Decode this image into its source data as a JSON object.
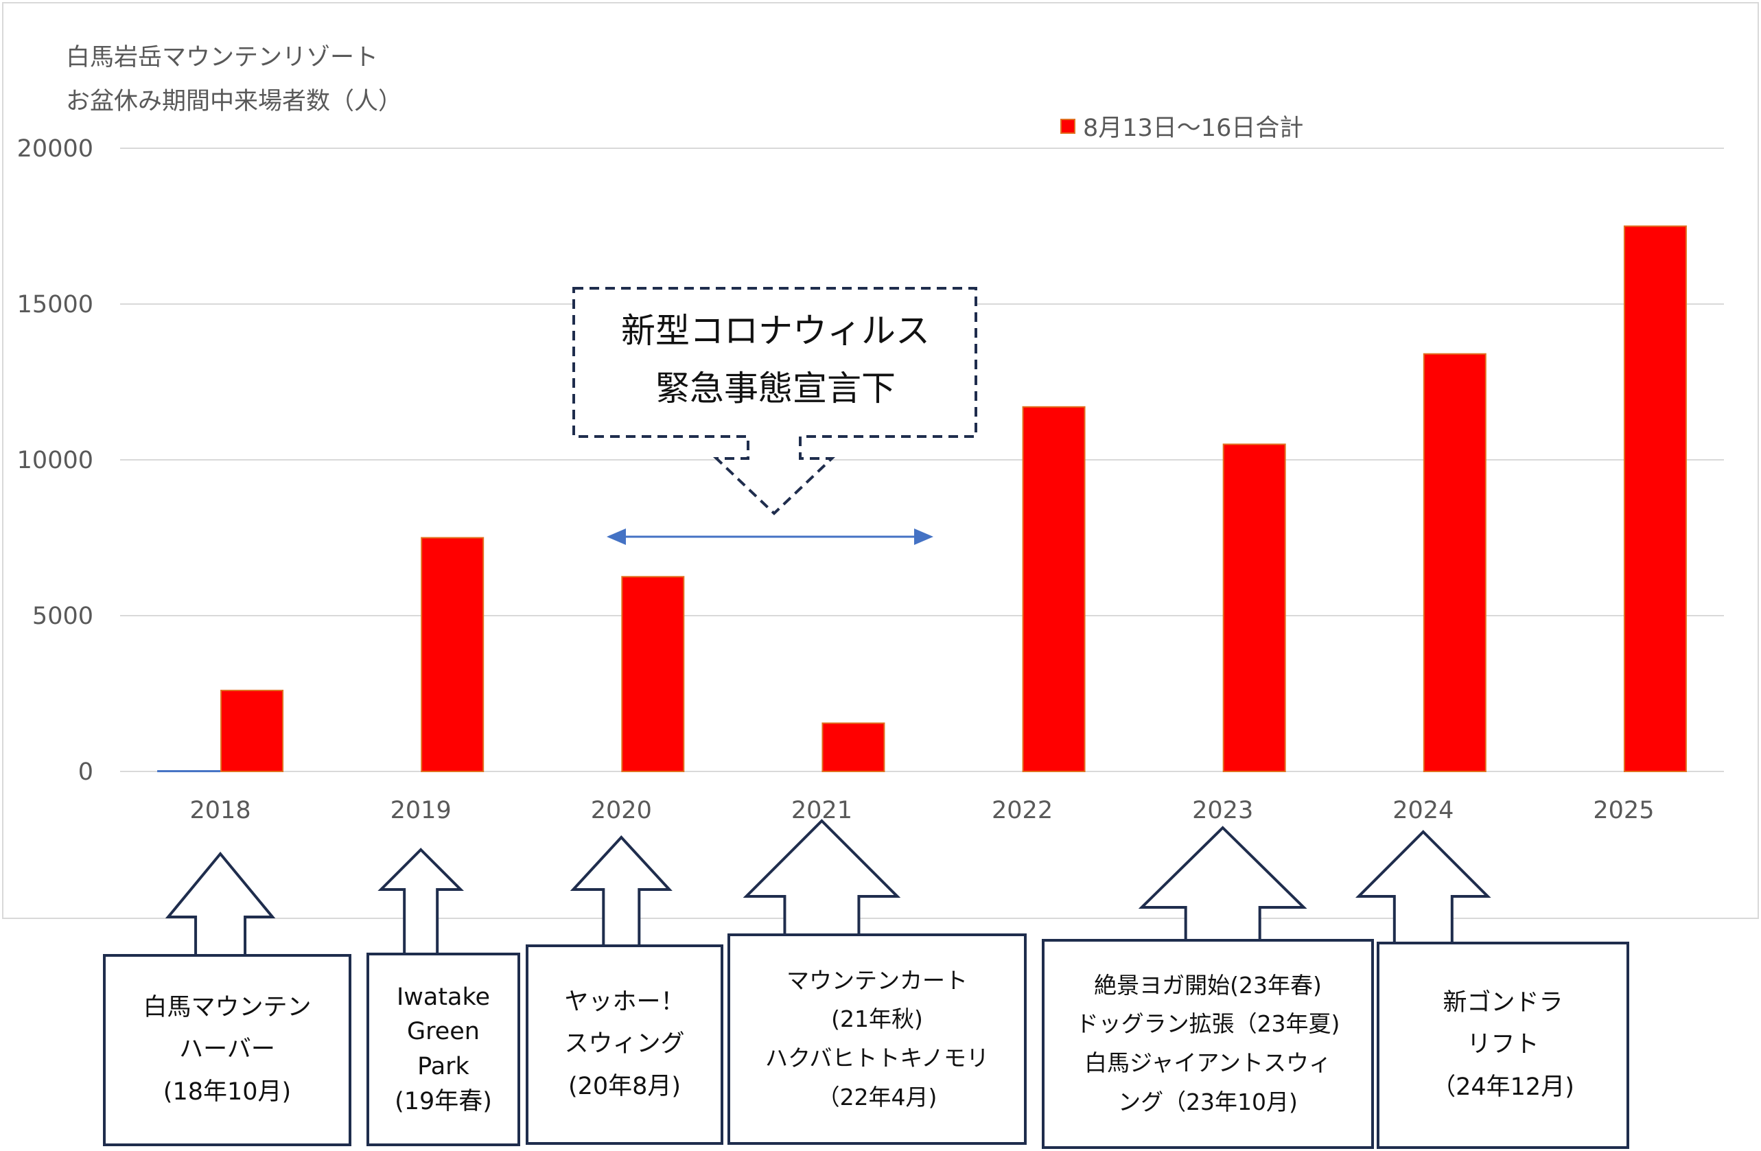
{
  "chart_data": {
    "type": "bar",
    "title": [
      "白馬岩岳マウンテンリゾート",
      "お盆休み期間中来場者数（人）"
    ],
    "categories": [
      "2018",
      "2019",
      "2020",
      "2021",
      "2022",
      "2023",
      "2024",
      "2025"
    ],
    "series": [
      {
        "name": "",
        "color": "#4472c4",
        "values": [
          20,
          0,
          0,
          0,
          0,
          0,
          0,
          0
        ]
      },
      {
        "name": "8月13日〜16日合計",
        "color": "#ff0000",
        "values": [
          2600,
          7500,
          6250,
          1550,
          11700,
          10500,
          13400,
          17500
        ]
      }
    ],
    "ylim": [
      0,
      20000
    ],
    "yticks": [
      "0",
      "5000",
      "10000",
      "15000",
      "20000"
    ],
    "grid": true,
    "legend": "top-right",
    "xlabel": "",
    "ylabel": ""
  },
  "callouts": {
    "covid": [
      "新型コロナウィルス",
      "緊急事態宣言下"
    ],
    "covid_span": [
      "2020",
      "2021"
    ]
  },
  "annotations": [
    {
      "year": "2018",
      "lines": [
        "白馬マウンテン",
        "ハーバー",
        "(18年10月)"
      ]
    },
    {
      "year": "2019",
      "lines": [
        "Iwatake",
        "Green",
        "Park",
        "(19年春)"
      ]
    },
    {
      "year": "2020",
      "lines": [
        "ヤッホー！",
        "スウィング",
        "(20年8月)"
      ]
    },
    {
      "year": "2021",
      "lines": [
        "マウンテンカート",
        "(21年秋)",
        "ハクバヒトトキノモリ",
        "（22年4月)"
      ]
    },
    {
      "year": "2023",
      "lines": [
        "絶景ヨガ開始(23年春)",
        "ドッグラン拡張（23年夏)",
        "白馬ジャイアントスウィ",
        "ング（23年10月)"
      ]
    },
    {
      "year": "2024",
      "lines": [
        "新ゴンドラ",
        "リフト",
        "（24年12月)"
      ]
    }
  ],
  "colors": {
    "bar_primary": "#ff0000",
    "bar_edge": "#e07020",
    "bar_secondary": "#4472c4",
    "grid": "#d9d9d9",
    "axis_text": "#595959",
    "annotation_border": "#1f2d4d",
    "arrow": "#4472c4"
  }
}
